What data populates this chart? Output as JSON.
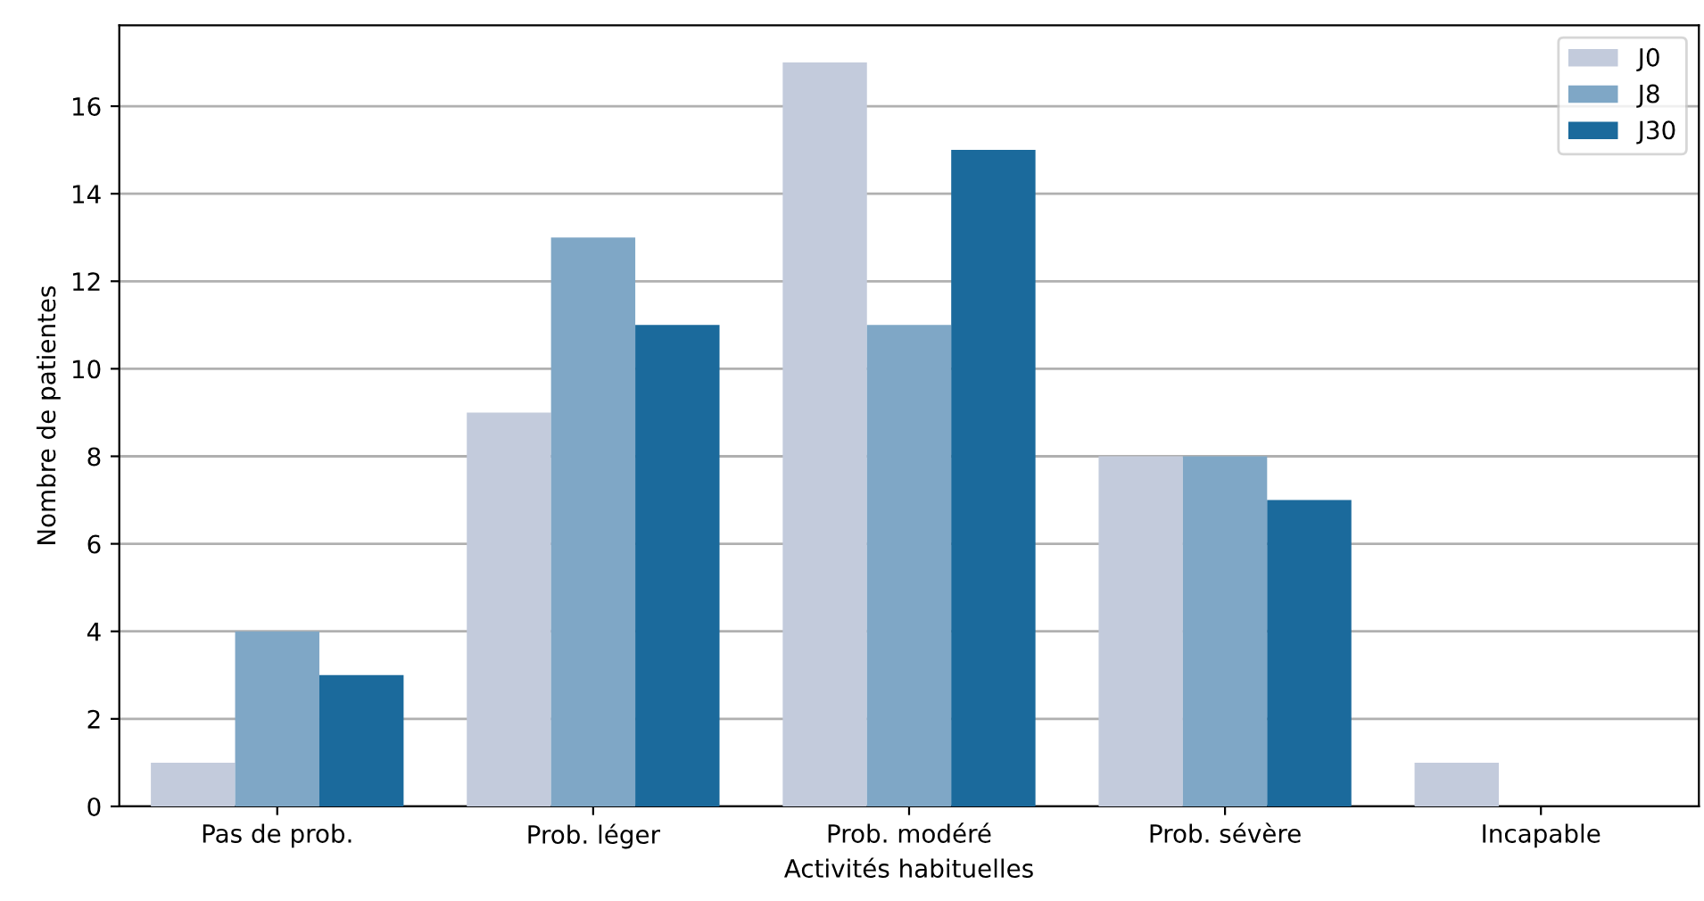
{
  "chart_data": {
    "type": "bar",
    "xlabel": "Activités habituelles",
    "ylabel": "Nombre de patientes",
    "categories": [
      "Pas de prob.",
      "Prob. léger",
      "Prob. modéré",
      "Prob. sévère",
      "Incapable"
    ],
    "series": [
      {
        "name": "J0",
        "color": "#c3cbdc",
        "values": [
          1,
          9,
          17,
          8,
          1
        ]
      },
      {
        "name": "J8",
        "color": "#7fa7c6",
        "values": [
          4,
          13,
          11,
          8,
          0
        ]
      },
      {
        "name": "J30",
        "color": "#1b6a9c",
        "values": [
          3,
          11,
          15,
          7,
          0
        ]
      }
    ],
    "ylim": [
      0,
      17.85
    ],
    "yticks": [
      0,
      2,
      4,
      6,
      8,
      10,
      12,
      14,
      16
    ],
    "grid": "y",
    "legend": "top right"
  }
}
